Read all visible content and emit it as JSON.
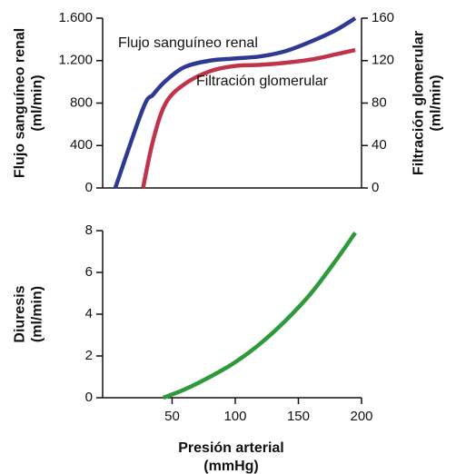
{
  "chart_data": [
    {
      "type": "line",
      "y_label": [
        "Flujo sanguíneo renal",
        "(ml/min)"
      ],
      "y2_label": [
        "Filtración glomerular",
        "(ml/min)"
      ],
      "x": [
        5,
        27,
        35,
        45,
        60,
        80,
        100,
        120,
        140,
        160,
        180,
        195
      ],
      "xlim": [
        -5,
        200
      ],
      "ylim": [
        0,
        1600
      ],
      "yticks": [
        0,
        400,
        800,
        {
          "value": 1200,
          "label": "1.200"
        },
        {
          "value": 1600,
          "label": "1.600"
        }
      ],
      "y2lim": [
        0,
        160
      ],
      "y2ticks": [
        0,
        40,
        80,
        120,
        160
      ],
      "series": [
        {
          "name": "Flujo sanguíneo renal",
          "color": "#2e3a92",
          "values": [
            0,
            750,
            880,
            1010,
            1140,
            1200,
            1220,
            1240,
            1290,
            1380,
            1490,
            1600
          ]
        },
        {
          "name": "Filtración glomerular",
          "color": "#c0334a",
          "axis": "y2",
          "values": [
            null,
            0,
            45,
            80,
            98,
            110,
            115,
            116,
            118,
            121,
            126,
            130
          ]
        }
      ]
    },
    {
      "type": "line",
      "y_label": [
        "Diuresis",
        "(ml/min)"
      ],
      "x_label": [
        "Presión arterial",
        "(mmHg)"
      ],
      "x": [
        43,
        60,
        80,
        100,
        120,
        140,
        160,
        180,
        195
      ],
      "xlim": [
        -5,
        200
      ],
      "xticks": [
        50,
        100,
        150,
        200
      ],
      "ylim": [
        0,
        8
      ],
      "yticks": [
        0,
        2,
        4,
        6,
        8
      ],
      "series": [
        {
          "name": "Diuresis",
          "color": "#2e9a3c",
          "values": [
            0,
            0.4,
            1.0,
            1.7,
            2.6,
            3.7,
            5.0,
            6.6,
            7.9
          ]
        }
      ]
    }
  ]
}
